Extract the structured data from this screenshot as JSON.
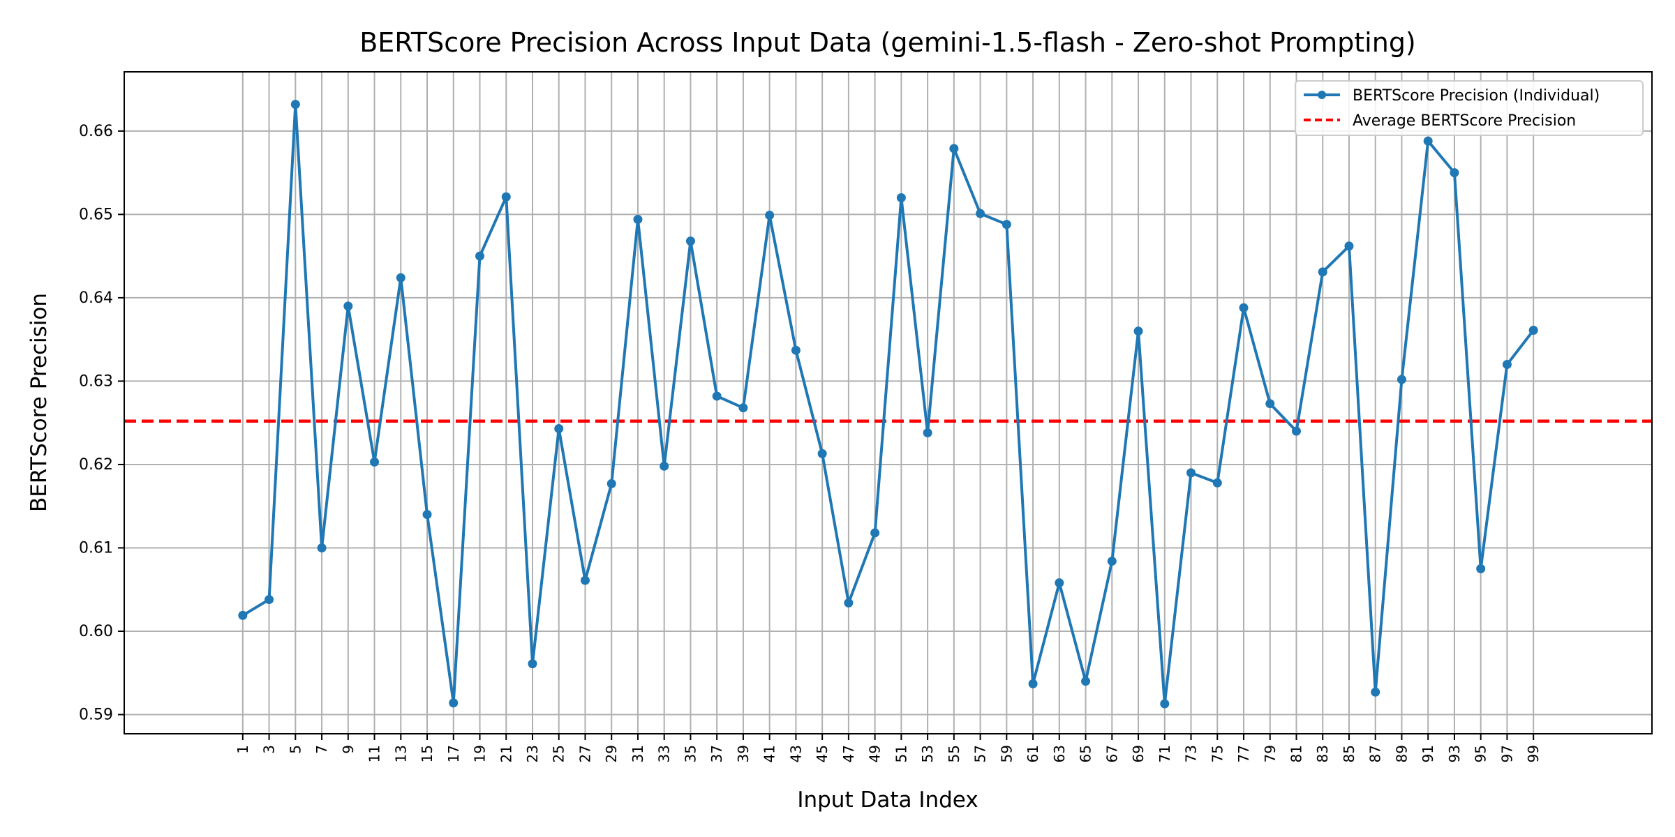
{
  "chart_data": {
    "type": "line",
    "title": "BERTScore Precision Across Input Data (gemini-1.5-flash - Zero-shot Prompting)",
    "xlabel": "Input Data Index",
    "ylabel": "BERTScore Precision",
    "x": [
      1,
      3,
      5,
      7,
      9,
      11,
      13,
      15,
      17,
      19,
      21,
      23,
      25,
      27,
      29,
      31,
      33,
      35,
      37,
      39,
      41,
      43,
      45,
      47,
      49,
      51,
      53,
      55,
      57,
      59,
      61,
      63,
      65,
      67,
      69,
      71,
      73,
      75,
      77,
      79,
      81,
      83,
      85,
      87,
      89,
      91,
      93,
      95,
      97,
      99
    ],
    "y_ticks": [
      "0.59",
      "0.60",
      "0.61",
      "0.62",
      "0.63",
      "0.64",
      "0.65",
      "0.66"
    ],
    "xlim": [
      -8,
      108
    ],
    "ylim": [
      0.5877,
      0.6671
    ],
    "grid": true,
    "legend_position": "top-right",
    "series": [
      {
        "name": "BERTScore Precision (Individual)",
        "color": "#1f77b4",
        "style": "line-with-markers",
        "values": [
          0.6019,
          0.6038,
          0.6632,
          0.61,
          0.639,
          0.6203,
          0.6424,
          0.614,
          0.5914,
          0.645,
          0.6521,
          0.5961,
          0.6243,
          0.6061,
          0.6177,
          0.6494,
          0.6198,
          0.6468,
          0.6282,
          0.6268,
          0.6499,
          0.6337,
          0.6213,
          0.6034,
          0.6118,
          0.652,
          0.6238,
          0.6579,
          0.6501,
          0.6488,
          0.5937,
          0.6058,
          0.594,
          0.6084,
          0.636,
          0.5913,
          0.619,
          0.6178,
          0.6388,
          0.6273,
          0.624,
          0.6431,
          0.6462,
          0.5927,
          0.6302,
          0.6588,
          0.655,
          0.6075,
          0.632,
          0.6361
        ]
      },
      {
        "name": "Average BERTScore Precision",
        "color": "#ff0000",
        "style": "dashed-horizontal",
        "value": 0.6252
      }
    ]
  }
}
